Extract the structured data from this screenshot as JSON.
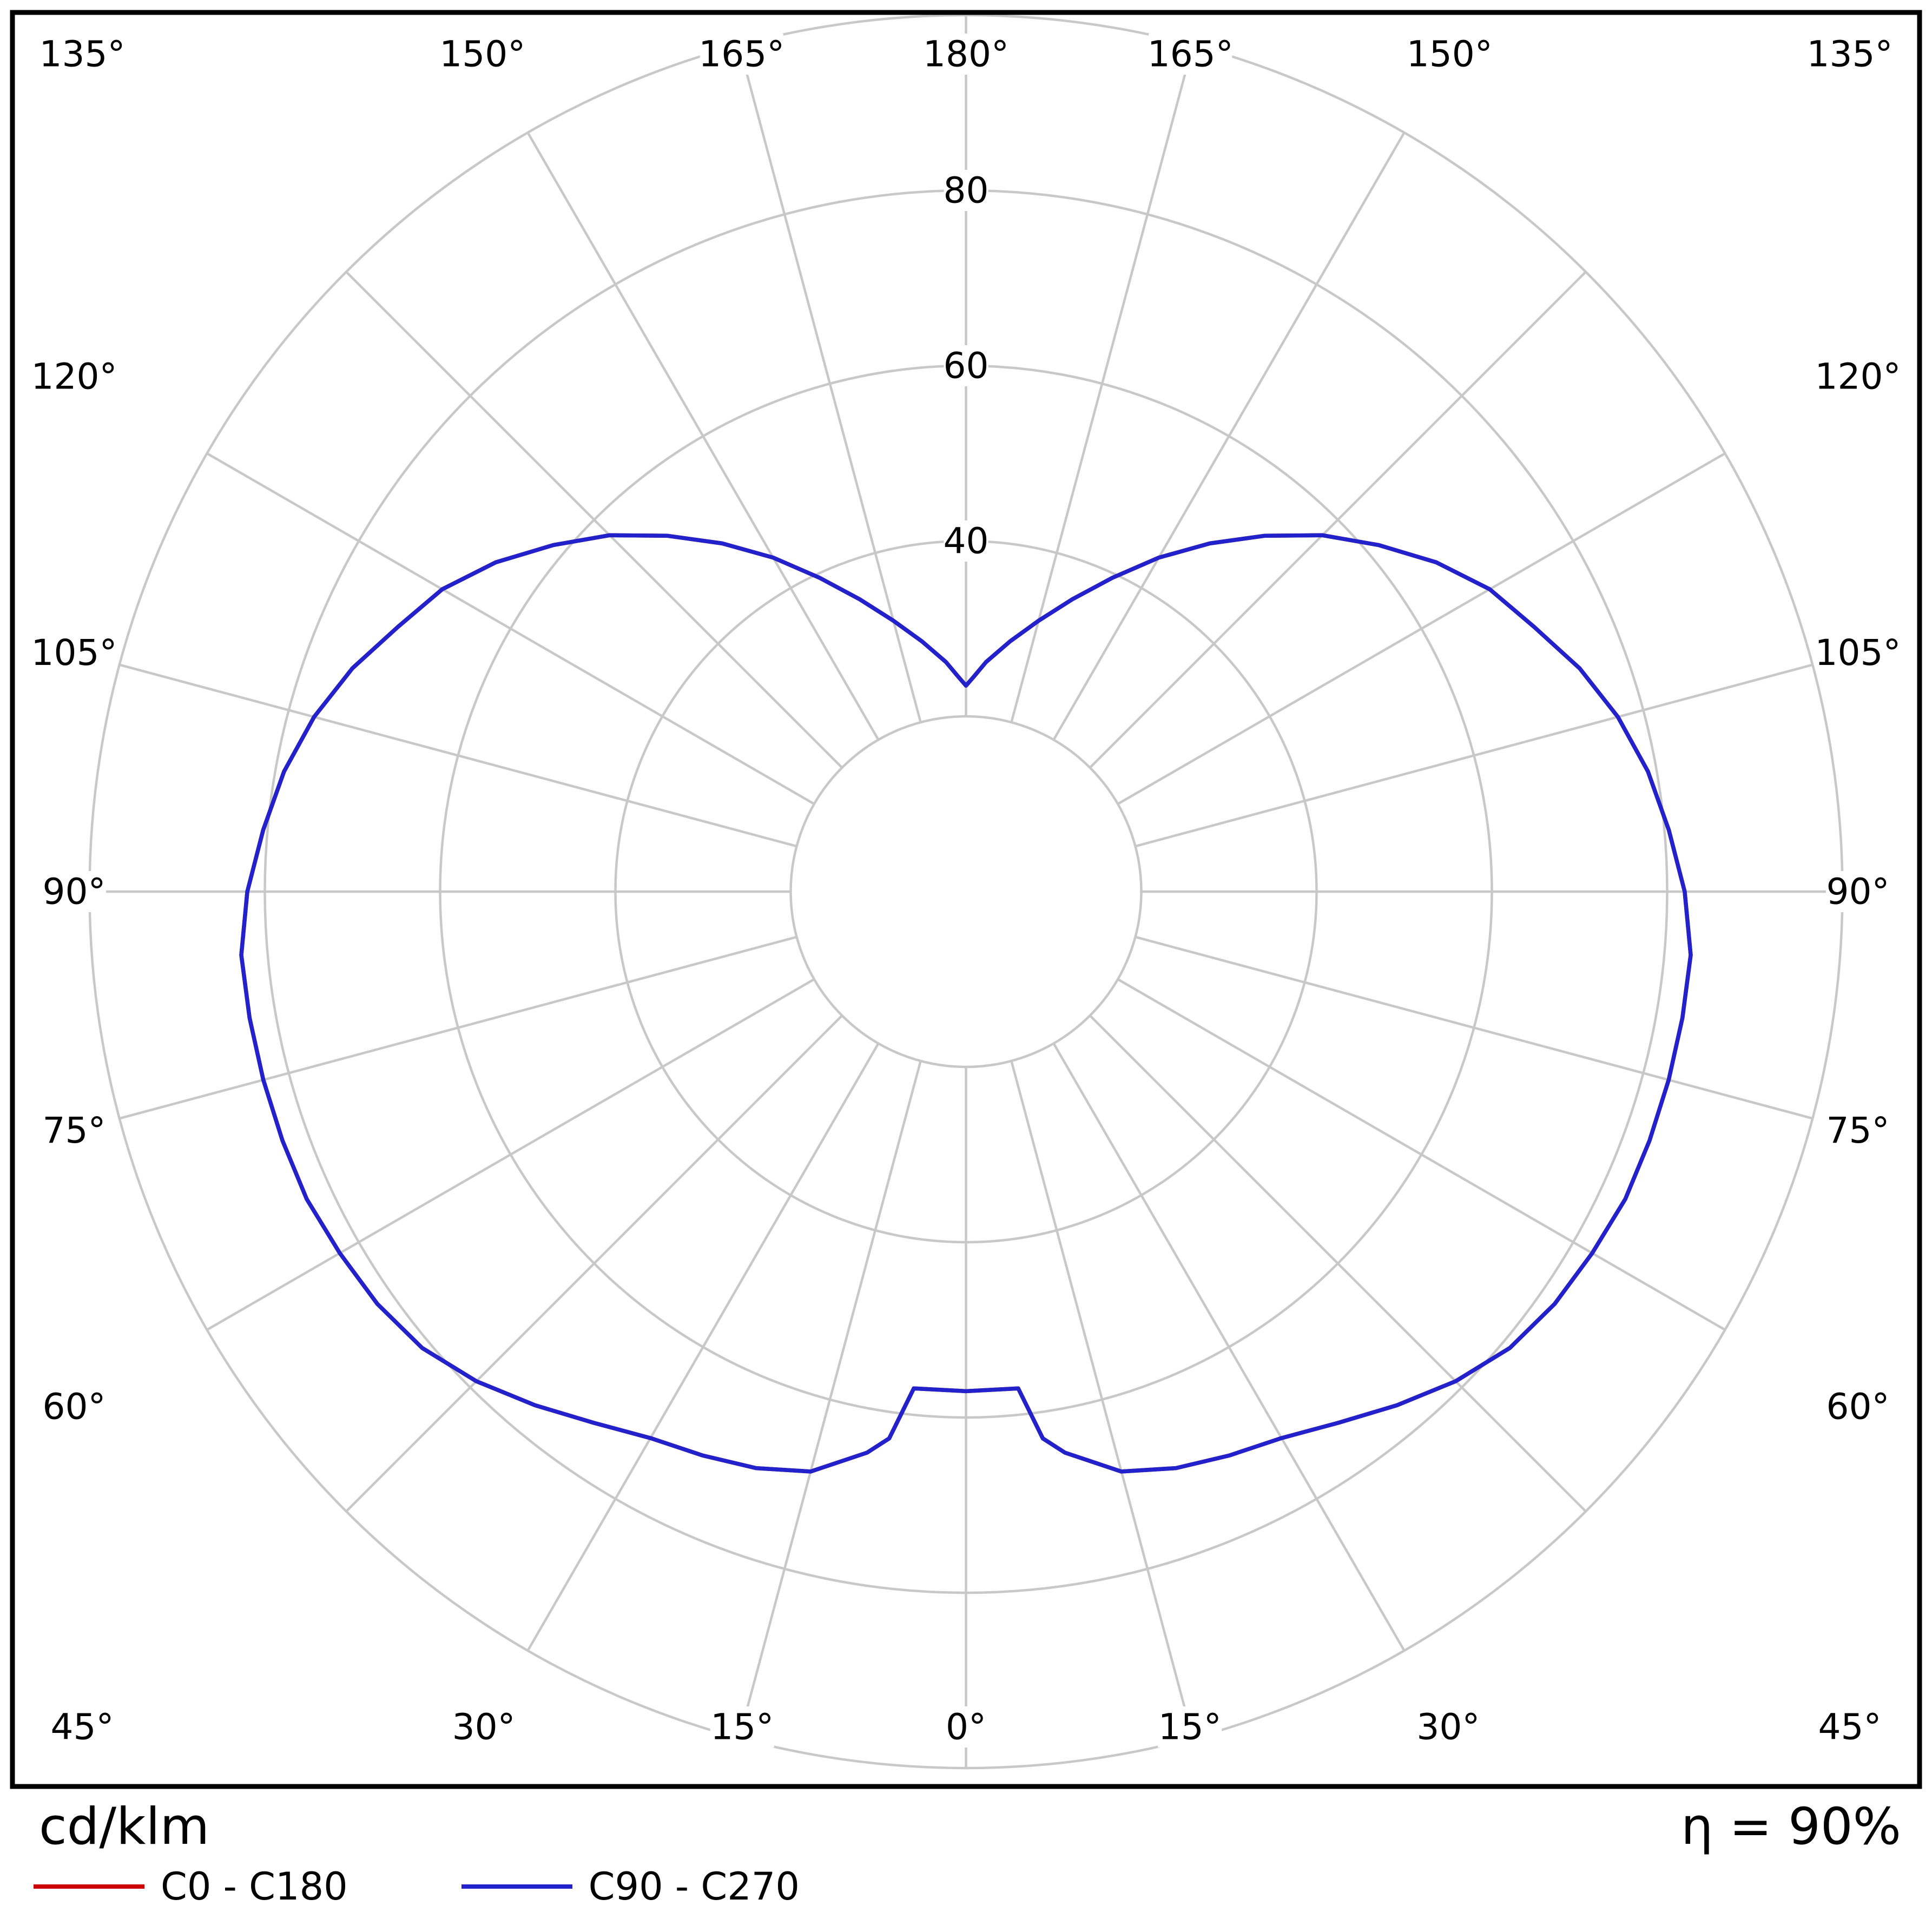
{
  "footer": {
    "unit_label": "cd/klm",
    "efficiency_label": "η = 90%"
  },
  "legend": {
    "items": [
      {
        "label": "C0 - C180",
        "color": "#cc0000"
      },
      {
        "label": "C90 - C270",
        "color": "#2222cc"
      }
    ]
  },
  "chart_data": {
    "type": "line",
    "subtype": "polar-luminous-intensity",
    "unit": "cd/klm",
    "gamma_zero_direction": "bottom",
    "grid_color": "#c8c8c8",
    "border_color": "#000000",
    "radial_rings": [
      20,
      40,
      60,
      80,
      100
    ],
    "radial_tick_labels": [
      {
        "value": 40,
        "t": "40"
      },
      {
        "value": 60,
        "t": "60"
      },
      {
        "value": 80,
        "t": "80"
      }
    ],
    "angle_step_deg": 15,
    "angle_labels": [
      {
        "g": 0,
        "t": "0°"
      },
      {
        "g": 15,
        "t": "15°"
      },
      {
        "g": 30,
        "t": "30°"
      },
      {
        "g": 45,
        "t": "45°"
      },
      {
        "g": 60,
        "t": "60°"
      },
      {
        "g": 75,
        "t": "75°"
      },
      {
        "g": 90,
        "t": "90°"
      },
      {
        "g": 105,
        "t": "105°"
      },
      {
        "g": 120,
        "t": "120°"
      },
      {
        "g": 135,
        "t": "135°"
      },
      {
        "g": 150,
        "t": "150°"
      },
      {
        "g": 165,
        "t": "165°"
      },
      {
        "g": 180,
        "t": "180°"
      }
    ],
    "rmax": 100,
    "series": [
      {
        "name": "C0 - C180",
        "color": "#cc0000",
        "symmetric": true,
        "gamma": [
          0,
          6,
          8,
          10,
          15,
          20,
          25,
          30,
          35,
          40,
          45,
          50,
          55,
          60,
          65,
          70,
          75,
          80,
          85,
          90,
          95,
          100,
          105,
          110,
          115,
          120,
          125,
          130,
          135,
          140,
          145,
          150,
          155,
          160,
          165,
          170,
          175,
          178,
          180
        ],
        "values": [
          57,
          57,
          63,
          65,
          68.5,
          70,
          71,
          72,
          74,
          76.5,
          79,
          81,
          82,
          82.5,
          83,
          83,
          83,
          83,
          83,
          82,
          80.5,
          79,
          77,
          74.5,
          71.5,
          69,
          65.5,
          61.5,
          57.5,
          53,
          48.5,
          44,
          39.5,
          35.5,
          32,
          29,
          26.3,
          24.5,
          23.5
        ]
      },
      {
        "name": "C90 - C270",
        "color": "#2222cc",
        "symmetric": true,
        "gamma": [
          0,
          6,
          8,
          10,
          15,
          20,
          25,
          30,
          35,
          40,
          45,
          50,
          55,
          60,
          65,
          70,
          75,
          80,
          85,
          90,
          95,
          100,
          105,
          110,
          115,
          120,
          125,
          130,
          135,
          140,
          145,
          150,
          155,
          160,
          165,
          170,
          175,
          178,
          180
        ],
        "values": [
          57,
          57,
          63,
          65,
          68.5,
          70,
          71,
          72,
          74,
          76.5,
          79,
          81,
          82,
          82.5,
          83,
          83,
          83,
          83,
          83,
          82,
          80.5,
          79,
          77,
          74.5,
          71.5,
          69,
          65.5,
          61.5,
          57.5,
          53,
          48.5,
          44,
          39.5,
          35.5,
          32,
          29,
          26.3,
          24.5,
          23.5
        ]
      }
    ]
  }
}
